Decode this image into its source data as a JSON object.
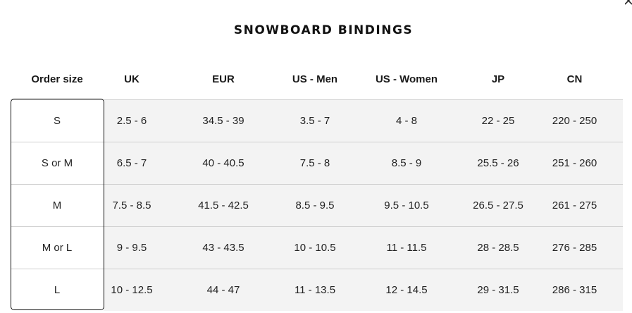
{
  "title": "SNOWBOARD BINDINGS",
  "columns": [
    "Order size",
    "UK",
    "EUR",
    "US - Men",
    "US - Women",
    "JP",
    "CN"
  ],
  "rows": [
    [
      "S",
      "2.5 - 6",
      "34.5 - 39",
      "3.5 - 7",
      "4 - 8",
      "22 - 25",
      "220 - 250"
    ],
    [
      "S or M",
      "6.5 - 7",
      "40 - 40.5",
      "7.5 - 8",
      "8.5 - 9",
      "25.5 - 26",
      "251 - 260"
    ],
    [
      "M",
      "7.5 - 8.5",
      "41.5 - 42.5",
      "8.5 - 9.5",
      "9.5 - 10.5",
      "26.5 - 27.5",
      "261 - 275"
    ],
    [
      "M or L",
      "9 - 9.5",
      "43 - 43.5",
      "10 - 10.5",
      "11 - 11.5",
      "28 - 28.5",
      "276 - 285"
    ],
    [
      "L",
      "10 - 12.5",
      "44 - 47",
      "11 - 13.5",
      "12 - 14.5",
      "29 - 31.5",
      "286 - 315"
    ]
  ],
  "icons": {
    "close": "close-icon"
  }
}
